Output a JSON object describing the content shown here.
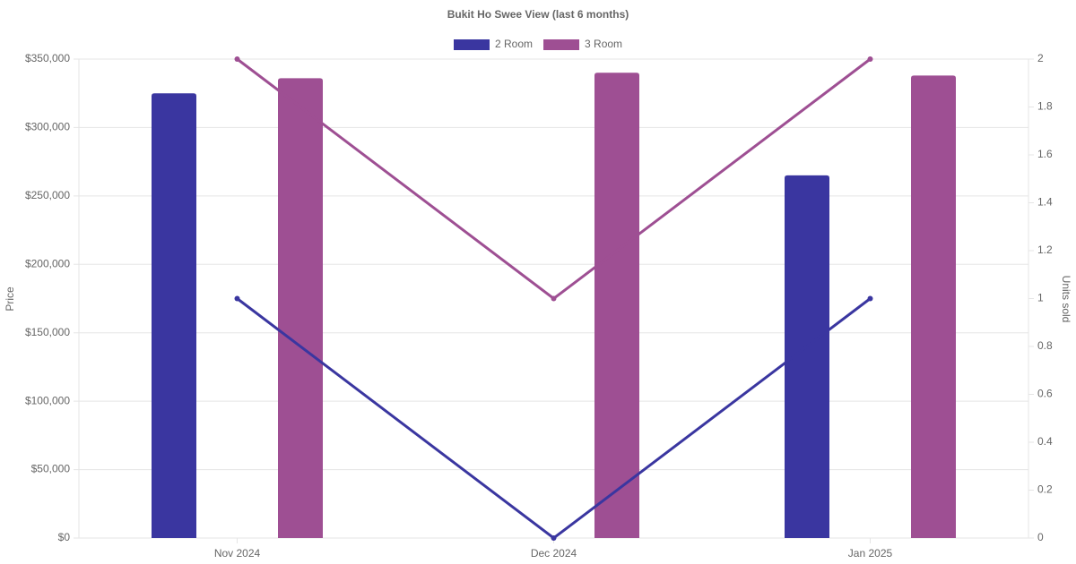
{
  "chart_data": {
    "type": "bar-line",
    "title": "Bukit Ho Swee View (last 6 months)",
    "categories": [
      "Nov 2024",
      "Dec 2024",
      "Jan 2025"
    ],
    "series": [
      {
        "name": "2 Room",
        "color": "#3a36a0",
        "values": [
          325000,
          null,
          265000
        ],
        "units": [
          1,
          0,
          1
        ]
      },
      {
        "name": "3 Room",
        "color": "#9e4f93",
        "values": [
          336000,
          340000,
          338000
        ],
        "units": [
          2,
          1,
          2
        ]
      }
    ],
    "ylabel": "Price",
    "y2label": "Units sold",
    "ylim": [
      0,
      350000
    ],
    "yticks": [
      {
        "value": 0,
        "label": "$0"
      },
      {
        "value": 50000,
        "label": "$50,000"
      },
      {
        "value": 100000,
        "label": "$100,000"
      },
      {
        "value": 150000,
        "label": "$150,000"
      },
      {
        "value": 200000,
        "label": "$200,000"
      },
      {
        "value": 250000,
        "label": "$250,000"
      },
      {
        "value": 300000,
        "label": "$300,000"
      },
      {
        "value": 350000,
        "label": "$350,000"
      }
    ],
    "y2lim": [
      0,
      2
    ],
    "y2ticks": [
      0,
      0.2,
      0.4,
      0.6,
      0.8,
      1,
      1.2,
      1.4,
      1.6,
      1.8,
      2
    ],
    "grid": true,
    "legend": "top"
  }
}
